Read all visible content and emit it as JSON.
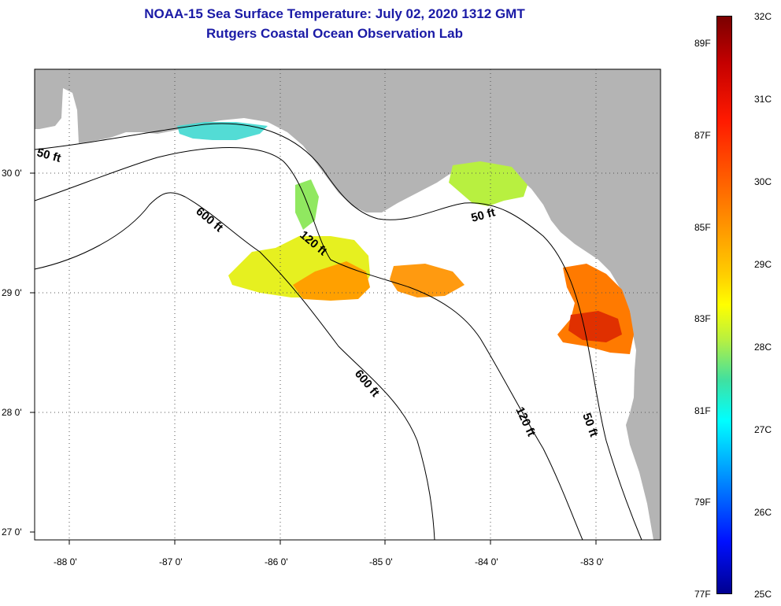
{
  "header": {
    "title": "NOAA-15 Sea Surface Temperature:  July 02, 2020 1312 GMT",
    "subtitle": "Rutgers Coastal Ocean Observation Lab"
  },
  "map": {
    "lat_ticks": [
      "30 0'",
      "29 0'",
      "28 0'",
      "27 0'"
    ],
    "lon_ticks": [
      "-88 0'",
      "-87 0'",
      "-86 0'",
      "-85 0'",
      "-84 0'",
      "-83 0'"
    ],
    "depth_labels": [
      "50 ft",
      "600 ft",
      "120 ft",
      "50 ft",
      "600 ft",
      "120 ft",
      "50 ft"
    ],
    "land_color": "#b4b4b4"
  },
  "colorbar": {
    "fahrenheit_labels": [
      "89F",
      "87F",
      "85F",
      "83F",
      "81F",
      "79F",
      "77F"
    ],
    "celsius_labels": [
      "32C",
      "31C",
      "30C",
      "29C",
      "28C",
      "27C",
      "26C",
      "25C"
    ]
  }
}
